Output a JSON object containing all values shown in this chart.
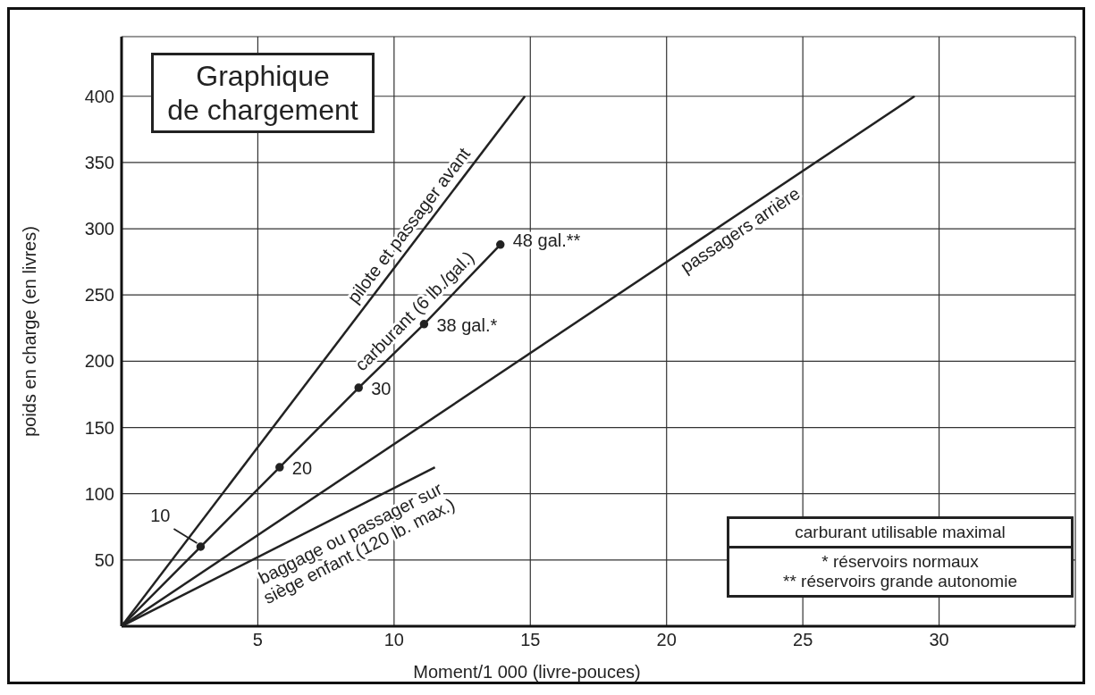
{
  "chart_data": {
    "type": "line",
    "title": "Graphique de chargement",
    "xlabel": "Moment/1 000 (livre-pouces)",
    "ylabel": "poids en charge (en livres)",
    "xlim": [
      0,
      35
    ],
    "xticks": [
      5,
      10,
      15,
      20,
      25,
      30
    ],
    "ylim": [
      0,
      445
    ],
    "yticks": [
      50,
      100,
      150,
      200,
      250,
      300,
      350,
      400
    ],
    "grid": true,
    "legend": false,
    "line_style": "solid",
    "series": [
      {
        "name": "pilote et passager avant",
        "color": "#222222",
        "x": [
          0,
          14.8
        ],
        "values": [
          0,
          400
        ]
      },
      {
        "name": "carburant (6 lb./gal.)",
        "color": "#222222",
        "x": [
          0,
          2.9,
          5.8,
          8.7,
          11.1,
          13.9
        ],
        "values": [
          0,
          60,
          120,
          180,
          228,
          288
        ],
        "marker": "circle"
      },
      {
        "name": "passagers arrière",
        "color": "#222222",
        "x": [
          0,
          29.1
        ],
        "values": [
          0,
          400
        ]
      },
      {
        "name": "baggage ou passager sur siège enfant (120 lb. max.)",
        "color": "#222222",
        "x": [
          0,
          11.5
        ],
        "values": [
          0,
          120
        ]
      }
    ],
    "annotations": [
      {
        "text": "10",
        "x": 2.9,
        "y": 60
      },
      {
        "text": "20",
        "x": 5.8,
        "y": 120
      },
      {
        "text": "30",
        "x": 8.7,
        "y": 180
      },
      {
        "text": "38 gal.*",
        "x": 11.1,
        "y": 228
      },
      {
        "text": "48 gal.**",
        "x": 13.9,
        "y": 288
      },
      "carburant utilisable maximal",
      "* réservoirs normaux",
      "** réservoirs grande autonomie"
    ]
  }
}
